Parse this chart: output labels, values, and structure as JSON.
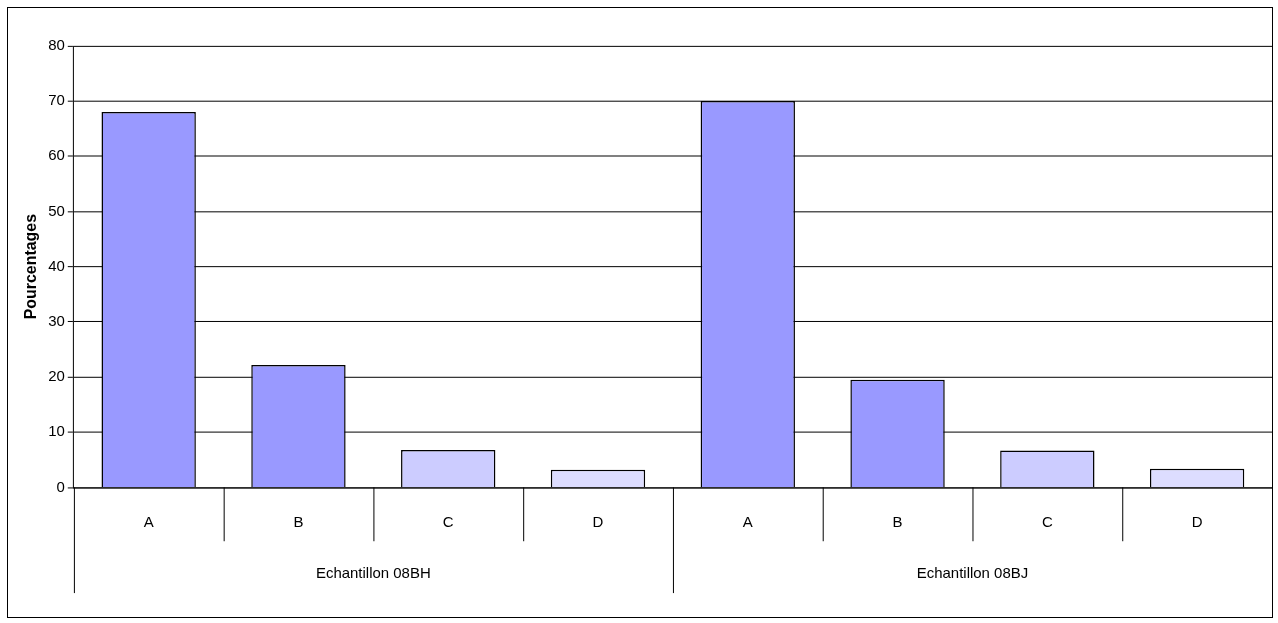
{
  "chart_data": {
    "type": "bar",
    "ylabel": "Pourcentages",
    "categories": [
      "A",
      "B",
      "C",
      "D",
      "A",
      "B",
      "C",
      "D"
    ],
    "values": [
      68,
      22.2,
      6.8,
      3.2,
      70,
      19.5,
      6.7,
      3.4
    ],
    "colors": [
      "#9999ff",
      "#9999ff",
      "#ccccff",
      "#ddddff",
      "#9999ff",
      "#9999ff",
      "#ccccff",
      "#ddddff"
    ],
    "annotations": [
      "Echantillon 08BH",
      "Echantillon 08BJ"
    ],
    "ylim": [
      0,
      80
    ],
    "yticks": [
      0,
      10,
      20,
      30,
      40,
      50,
      60,
      70,
      80
    ],
    "grid": "y"
  }
}
